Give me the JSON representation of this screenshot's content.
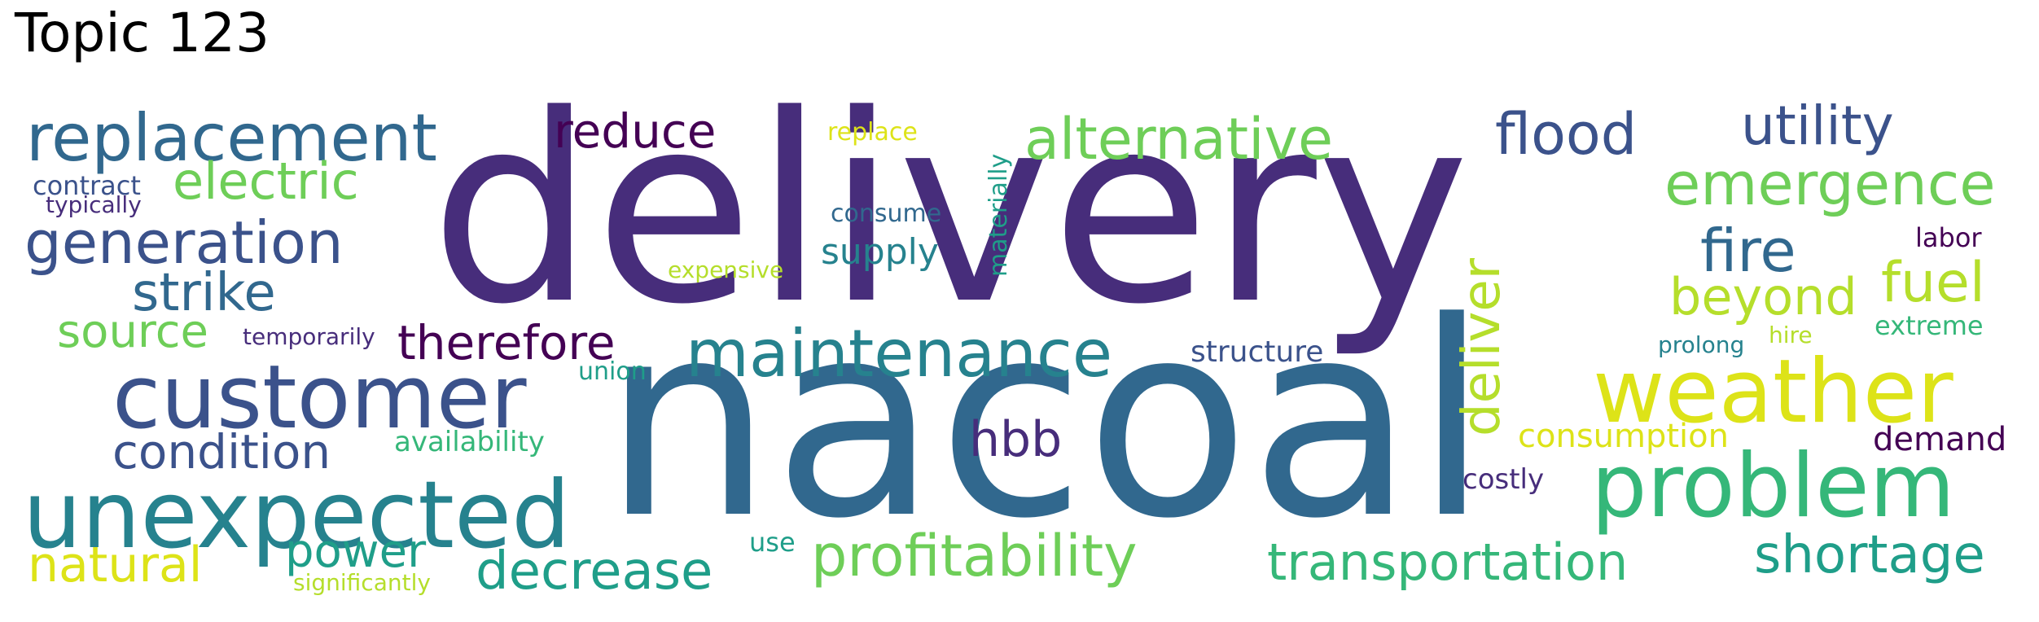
{
  "title": "Topic 123",
  "palette": {
    "dark_purple": "#472d7b",
    "deep_purple": "#440154",
    "indigo": "#3b528b",
    "blue": "#31688e",
    "teal": "#26828e",
    "teal_green": "#1f9e89",
    "green": "#35b779",
    "light_green": "#6ece58",
    "lime": "#b5de2b",
    "yellow": "#dde318"
  },
  "words": {
    "delivery": "delivery",
    "nacoal": "nacoal",
    "replacement": "replacement",
    "reduce": "reduce",
    "replace": "replace",
    "alternative": "alternative",
    "flood": "flood",
    "utility": "utility",
    "contract": "contract",
    "electric": "electric",
    "typically": "typically",
    "emergence": "emergence",
    "generation": "generation",
    "consume": "consume",
    "materially": "materially",
    "fire": "fire",
    "labor": "labor",
    "strike": "strike",
    "supply": "supply",
    "expensive": "expensive",
    "deliver": "deliver",
    "fuel": "fuel",
    "beyond": "beyond",
    "source": "source",
    "temporarily": "temporarily",
    "therefore": "therefore",
    "maintenance": "maintenance",
    "extreme": "extreme",
    "hire": "hire",
    "prolong": "prolong",
    "structure": "structure",
    "customer": "customer",
    "union": "union",
    "weather": "weather",
    "condition": "condition",
    "availability": "availability",
    "hbb": "hbb",
    "consumption": "consumption",
    "demand": "demand",
    "unexpected": "unexpected",
    "costly": "costly",
    "problem": "problem",
    "natural": "natural",
    "power": "power",
    "use": "use",
    "decrease": "decrease",
    "profitability": "profitability",
    "transportation": "transportation",
    "shortage": "shortage",
    "significantly": "significantly"
  }
}
